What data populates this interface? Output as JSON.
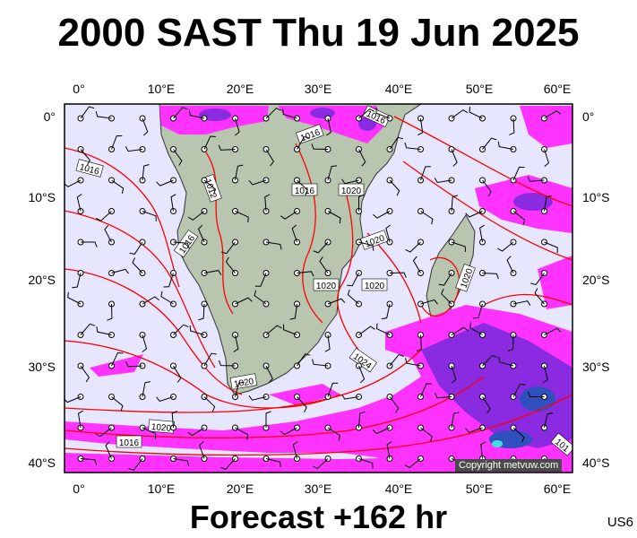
{
  "header": {
    "title": "2000 SAST Thu 19 Jun 2025"
  },
  "footer": {
    "forecast": "Forecast +162 hr",
    "code": "US6",
    "copyright": "Copyright metvuw.com"
  },
  "axes": {
    "longitudes": [
      "0°",
      "10°E",
      "20°E",
      "30°E",
      "40°E",
      "50°E",
      "60°E"
    ],
    "latitudes": [
      "0°",
      "10°S",
      "20°S",
      "30°S",
      "40°S"
    ]
  },
  "isobars": [
    {
      "label": "1016"
    },
    {
      "label": "1016"
    },
    {
      "label": "1016"
    },
    {
      "label": "1016"
    },
    {
      "label": "1016"
    },
    {
      "label": "1020"
    },
    {
      "label": "1020"
    },
    {
      "label": "1020"
    },
    {
      "label": "1020"
    },
    {
      "label": "1020"
    },
    {
      "label": "1020"
    },
    {
      "label": "1020"
    },
    {
      "label": "1024"
    },
    {
      "label": "1016"
    },
    {
      "label": "1012"
    },
    {
      "label": "101"
    }
  ],
  "colors": {
    "ocean": "#e6e6ff",
    "land": "#b8c6b0",
    "isobar": "#ff0000",
    "precip_light": "#ff33ff",
    "precip_mid": "#8a2be2",
    "precip_heavy": "#3050c0"
  }
}
